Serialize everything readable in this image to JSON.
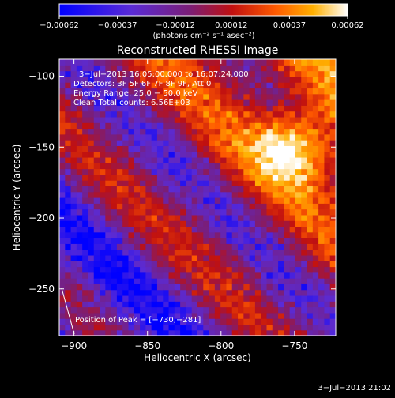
{
  "chart_data": {
    "type": "heatmap",
    "title": "Reconstructed RHESSI Image",
    "xlabel": "Heliocentric X (arcsec)",
    "ylabel": "Heliocentric Y (arcsec)",
    "xlim": [
      -910,
      -722
    ],
    "ylim": [
      -283,
      -88
    ],
    "xticks": [
      -900,
      -850,
      -800,
      -750
    ],
    "yticks": [
      -100,
      -150,
      -200,
      -250
    ],
    "xtick_labels": [
      "−900",
      "−850",
      "−800",
      "−750"
    ],
    "ytick_labels": [
      "−100",
      "−150",
      "−200",
      "−250"
    ],
    "colorbar": {
      "range": [
        -0.00062,
        0.00062
      ],
      "tick_values": [
        -0.00062,
        -0.00037,
        -0.00012,
        0.00012,
        0.00037,
        0.00062
      ],
      "tick_labels": [
        "−0.00062",
        "−0.00037",
        "−0.00012",
        "0.00012",
        "0.00037",
        "0.00062"
      ],
      "unit_label": "(photons cm⁻² s⁻¹ asec⁻²)",
      "colors": [
        "#0000ff",
        "#5a2bd6",
        "#7a1e78",
        "#c01010",
        "#ff5a00",
        "#ffb000",
        "#ffffff"
      ]
    },
    "annotations": [
      "3−Jul−2013 16:05:00.000 to 16:07:24.000",
      "Detectors: 3F 5F 6F 7F 8F 9F, Att 0",
      "Energy Range: 25.0 − 50.0 keV",
      "Clean    Total counts: 6.56E+03"
    ],
    "peak_label": "Position of Peak = [−730,−281]",
    "peak": [
      -730,
      -281
    ],
    "grid": false,
    "legend": "none",
    "emission": {
      "max": 0.00062,
      "min": -0.00062,
      "ridge_direction": "diagonal from top-right toward lower-left",
      "brightest_region": [
        -750,
        -150
      ]
    }
  },
  "footer": {
    "timestamp": "3−Jul−2013 21:02"
  }
}
